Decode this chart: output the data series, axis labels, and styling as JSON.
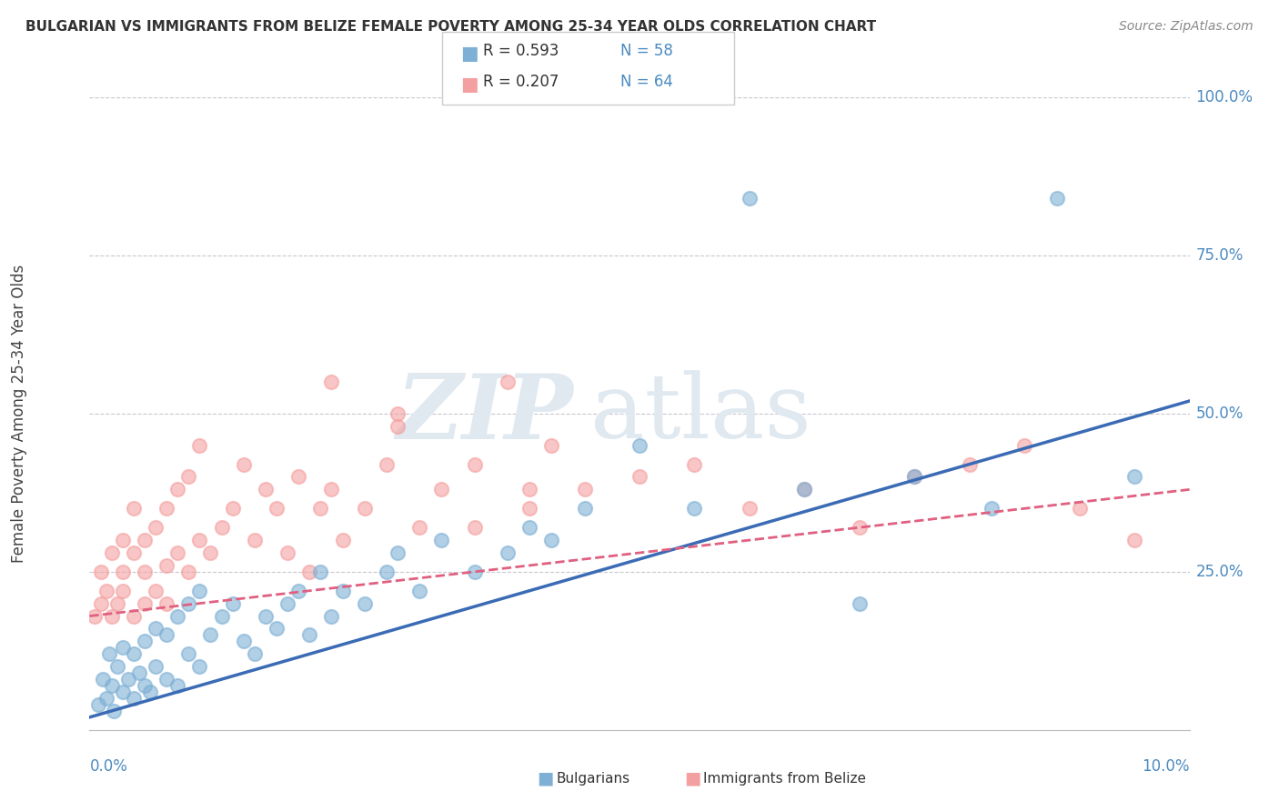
{
  "title": "BULGARIAN VS IMMIGRANTS FROM BELIZE FEMALE POVERTY AMONG 25-34 YEAR OLDS CORRELATION CHART",
  "source": "Source: ZipAtlas.com",
  "ylabel": "Female Poverty Among 25-34 Year Olds",
  "xlim": [
    0,
    0.1
  ],
  "ylim": [
    0,
    1.0
  ],
  "yticks": [
    0.0,
    0.25,
    0.5,
    0.75,
    1.0
  ],
  "ytick_labels": [
    "",
    "25.0%",
    "50.0%",
    "75.0%",
    "100.0%"
  ],
  "legend_label1": "Bulgarians",
  "legend_label2": "Immigrants from Belize",
  "blue_color": "#7EB0D5",
  "pink_color": "#F4A0A0",
  "blue_line_color": "#3B6BB5",
  "pink_line_color": "#E06080",
  "tick_label_color": "#4B8AC0",
  "title_color": "#333333",
  "source_color": "#888888",
  "watermark_color": "#E0E8F0",
  "grid_color": "#C8C8D0",
  "blue_x": [
    0.0008,
    0.0012,
    0.0015,
    0.0018,
    0.002,
    0.0022,
    0.0025,
    0.003,
    0.003,
    0.0035,
    0.004,
    0.004,
    0.0045,
    0.005,
    0.005,
    0.0055,
    0.006,
    0.006,
    0.007,
    0.007,
    0.008,
    0.008,
    0.009,
    0.009,
    0.01,
    0.01,
    0.011,
    0.012,
    0.013,
    0.014,
    0.015,
    0.016,
    0.017,
    0.018,
    0.019,
    0.02,
    0.021,
    0.022,
    0.023,
    0.025,
    0.027,
    0.028,
    0.03,
    0.032,
    0.035,
    0.038,
    0.04,
    0.042,
    0.045,
    0.05,
    0.055,
    0.06,
    0.065,
    0.07,
    0.075,
    0.082,
    0.088,
    0.095
  ],
  "blue_y": [
    0.04,
    0.08,
    0.05,
    0.12,
    0.07,
    0.03,
    0.1,
    0.06,
    0.13,
    0.08,
    0.05,
    0.12,
    0.09,
    0.07,
    0.14,
    0.06,
    0.1,
    0.16,
    0.08,
    0.15,
    0.07,
    0.18,
    0.12,
    0.2,
    0.1,
    0.22,
    0.15,
    0.18,
    0.2,
    0.14,
    0.12,
    0.18,
    0.16,
    0.2,
    0.22,
    0.15,
    0.25,
    0.18,
    0.22,
    0.2,
    0.25,
    0.28,
    0.22,
    0.3,
    0.25,
    0.28,
    0.32,
    0.3,
    0.35,
    0.45,
    0.35,
    0.84,
    0.38,
    0.2,
    0.4,
    0.35,
    0.84,
    0.4
  ],
  "pink_x": [
    0.0005,
    0.001,
    0.001,
    0.0015,
    0.002,
    0.002,
    0.0025,
    0.003,
    0.003,
    0.003,
    0.004,
    0.004,
    0.004,
    0.005,
    0.005,
    0.005,
    0.006,
    0.006,
    0.007,
    0.007,
    0.007,
    0.008,
    0.008,
    0.009,
    0.009,
    0.01,
    0.01,
    0.011,
    0.012,
    0.013,
    0.014,
    0.015,
    0.016,
    0.017,
    0.018,
    0.019,
    0.02,
    0.021,
    0.022,
    0.023,
    0.025,
    0.027,
    0.028,
    0.03,
    0.032,
    0.035,
    0.038,
    0.04,
    0.042,
    0.045,
    0.05,
    0.055,
    0.06,
    0.065,
    0.07,
    0.075,
    0.08,
    0.085,
    0.09,
    0.095,
    0.022,
    0.028,
    0.035,
    0.04
  ],
  "pink_y": [
    0.18,
    0.2,
    0.25,
    0.22,
    0.18,
    0.28,
    0.2,
    0.25,
    0.3,
    0.22,
    0.18,
    0.28,
    0.35,
    0.2,
    0.3,
    0.25,
    0.22,
    0.32,
    0.26,
    0.35,
    0.2,
    0.28,
    0.38,
    0.25,
    0.4,
    0.3,
    0.45,
    0.28,
    0.32,
    0.35,
    0.42,
    0.3,
    0.38,
    0.35,
    0.28,
    0.4,
    0.25,
    0.35,
    0.38,
    0.3,
    0.35,
    0.42,
    0.5,
    0.32,
    0.38,
    0.42,
    0.55,
    0.35,
    0.45,
    0.38,
    0.4,
    0.42,
    0.35,
    0.38,
    0.32,
    0.4,
    0.42,
    0.45,
    0.35,
    0.3,
    0.55,
    0.48,
    0.32,
    0.38
  ]
}
